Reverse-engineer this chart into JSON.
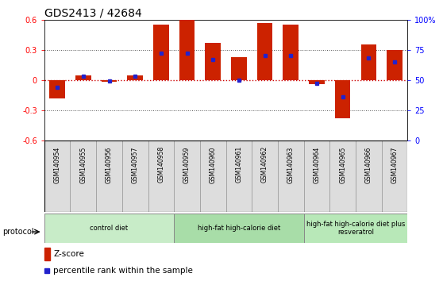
{
  "title": "GDS2413 / 42684",
  "samples": [
    "GSM140954",
    "GSM140955",
    "GSM140956",
    "GSM140957",
    "GSM140958",
    "GSM140959",
    "GSM140960",
    "GSM140961",
    "GSM140962",
    "GSM140963",
    "GSM140964",
    "GSM140965",
    "GSM140966",
    "GSM140967"
  ],
  "z_scores": [
    -0.18,
    0.05,
    -0.02,
    0.05,
    0.55,
    0.6,
    0.37,
    0.23,
    0.57,
    0.55,
    -0.04,
    -0.38,
    0.35,
    0.3
  ],
  "percentile": [
    44,
    53,
    49,
    53,
    72,
    72,
    67,
    50,
    70,
    70,
    47,
    36,
    68,
    65
  ],
  "groups": [
    {
      "label": "control diet",
      "start": 0,
      "end": 5,
      "color": "#c8ecc8"
    },
    {
      "label": "high-fat high-calorie diet",
      "start": 5,
      "end": 10,
      "color": "#a8dda8"
    },
    {
      "label": "high-fat high-calorie diet plus\nresveratrol",
      "start": 10,
      "end": 14,
      "color": "#b8e8b8"
    }
  ],
  "ylim": [
    -0.6,
    0.6
  ],
  "yticks_left": [
    -0.6,
    -0.3,
    0.0,
    0.3,
    0.6
  ],
  "ytick_labels_left": [
    "-0.6",
    "-0.3",
    "0",
    "0.3",
    "0.6"
  ],
  "y2ticks": [
    0,
    25,
    50,
    75,
    100
  ],
  "bar_color": "#cc2200",
  "pct_color": "#2222cc",
  "zero_line_color": "#cc0000",
  "background_color": "#ffffff",
  "title_fontsize": 10,
  "tick_fontsize": 7,
  "bar_width": 0.6,
  "cell_bg": "#dddddd"
}
